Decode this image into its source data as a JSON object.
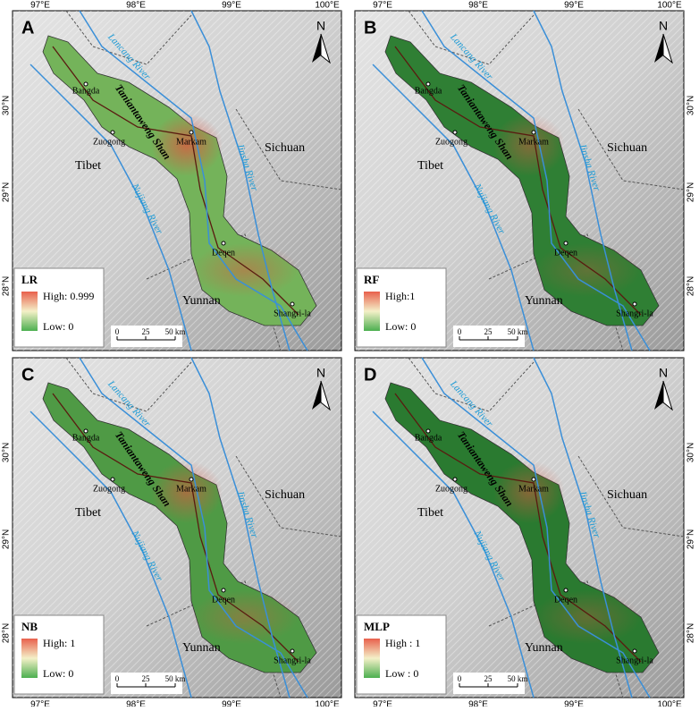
{
  "panels": [
    {
      "label": "A",
      "legend": {
        "title": "LR",
        "high": "High: 0.999",
        "low": "Low: 0"
      }
    },
    {
      "label": "B",
      "legend": {
        "title": "RF",
        "high": "High:1",
        "low": "Low: 0"
      }
    },
    {
      "label": "C",
      "legend": {
        "title": "NB",
        "high": "High: 1",
        "low": "Low: 0"
      }
    },
    {
      "label": "D",
      "legend": {
        "title": "MLP",
        "high": "High : 1",
        "low": "Low : 0"
      }
    }
  ],
  "places": {
    "bangda": "Bangda",
    "zuogong": "Zuogong",
    "markam": "Markam",
    "deqen": "Deqen",
    "shangrila": "Shangri-la"
  },
  "regions": {
    "tibet": "Tibet",
    "sichuan": "Sichuan",
    "yunnan": "Yunnan"
  },
  "rivers": {
    "lancang": "Lancang River",
    "jinsha": "Jinsha River",
    "nujiang": "Nujiang River"
  },
  "mountain": "Taniantaweng Shan",
  "north": "N",
  "scale_bar": [
    "0",
    "25",
    "50 km"
  ],
  "lon_ticks": [
    "97°E",
    "98°E",
    "99°E",
    "100°E"
  ],
  "lat_ticks": [
    "30°N",
    "29°N",
    "28°N"
  ]
}
